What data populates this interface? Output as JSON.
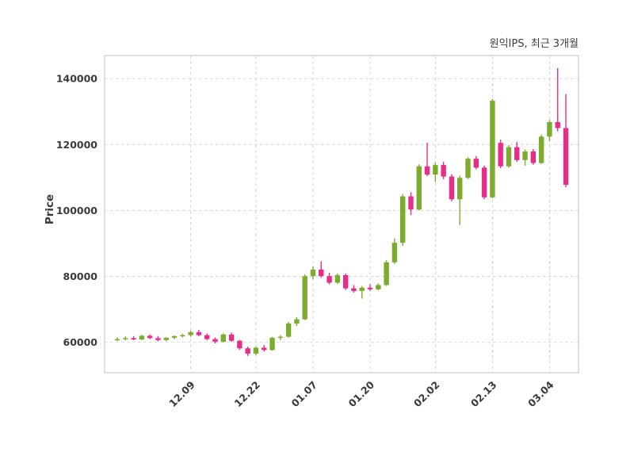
{
  "chart": {
    "title": "원익IPS, 최근 3개월",
    "ylabel": "Price"
  },
  "chart_data": {
    "type": "candlestick",
    "title": "원익IPS, 최근 3개월",
    "ylabel": "Price",
    "xlabel": "",
    "grid": "dashed",
    "legend": "none",
    "up_color": "#7cab2e",
    "down_color": "#e72d87",
    "axis_text_color": "#3a3a3a",
    "grid_color": "#d3d3d3",
    "border_color": "#cccccc",
    "y_ticks": [
      60000,
      80000,
      100000,
      120000,
      140000
    ],
    "y_tick_labels": [
      "60000",
      "80000",
      "100000",
      "120000",
      "140000"
    ],
    "ylim": [
      50800,
      147000
    ],
    "x_tick_labels": [
      "12.09",
      "12.22",
      "01.07",
      "01.20",
      "02.02",
      "02.13",
      "03.04"
    ],
    "x_tick_indices": [
      9,
      17,
      24,
      31,
      39,
      46,
      53
    ],
    "ohlc_order": [
      "open",
      "high",
      "low",
      "close"
    ],
    "candles": [
      [
        60800,
        61500,
        60400,
        61000
      ],
      [
        61000,
        61800,
        60600,
        61300
      ],
      [
        61300,
        61900,
        60700,
        60900
      ],
      [
        60900,
        62300,
        60700,
        62000
      ],
      [
        62000,
        62400,
        61000,
        61300
      ],
      [
        61300,
        61900,
        60300,
        60700
      ],
      [
        60700,
        61600,
        60400,
        61400
      ],
      [
        61400,
        62100,
        61000,
        61900
      ],
      [
        61900,
        62600,
        61500,
        62200
      ],
      [
        62200,
        63600,
        61700,
        63100
      ],
      [
        63100,
        63800,
        61900,
        62200
      ],
      [
        62200,
        62700,
        60700,
        61000
      ],
      [
        61000,
        61500,
        59700,
        60200
      ],
      [
        60200,
        62700,
        60000,
        62400
      ],
      [
        62400,
        63000,
        60200,
        60500
      ],
      [
        60500,
        60700,
        57700,
        58200
      ],
      [
        58200,
        58700,
        55900,
        56600
      ],
      [
        56600,
        58700,
        56100,
        58400
      ],
      [
        58400,
        59200,
        57200,
        57700
      ],
      [
        57700,
        61700,
        57500,
        61400
      ],
      [
        61400,
        62200,
        60700,
        61700
      ],
      [
        61700,
        66200,
        61500,
        65700
      ],
      [
        65700,
        67700,
        65000,
        67000
      ],
      [
        67000,
        80600,
        66800,
        80100
      ],
      [
        80100,
        83100,
        79100,
        82100
      ],
      [
        82100,
        84600,
        79600,
        80100
      ],
      [
        80100,
        81100,
        77600,
        78100
      ],
      [
        78100,
        80900,
        77700,
        80400
      ],
      [
        80400,
        80900,
        75900,
        76400
      ],
      [
        76400,
        77400,
        75100,
        75600
      ],
      [
        75600,
        77100,
        73300,
        76600
      ],
      [
        76600,
        77600,
        75600,
        76100
      ],
      [
        76100,
        77900,
        75800,
        77400
      ],
      [
        77400,
        85000,
        77100,
        84300
      ],
      [
        84300,
        91500,
        83800,
        90200
      ],
      [
        90200,
        105000,
        89300,
        104300
      ],
      [
        104300,
        105500,
        98600,
        100300
      ],
      [
        100300,
        114000,
        100000,
        113400
      ],
      [
        113400,
        120600,
        110400,
        110900
      ],
      [
        110900,
        114500,
        108600,
        113800
      ],
      [
        113800,
        114800,
        109500,
        110300
      ],
      [
        110300,
        111000,
        102800,
        103400
      ],
      [
        103400,
        110600,
        95600,
        109900
      ],
      [
        109900,
        116200,
        109500,
        115700
      ],
      [
        115700,
        116500,
        112500,
        113000
      ],
      [
        113000,
        113600,
        103400,
        104000
      ],
      [
        104000,
        133800,
        103700,
        133300
      ],
      [
        120500,
        121500,
        112800,
        113400
      ],
      [
        113400,
        119800,
        113000,
        119200
      ],
      [
        119200,
        120800,
        114700,
        115300
      ],
      [
        115300,
        118500,
        113600,
        117900
      ],
      [
        117900,
        118600,
        113900,
        114400
      ],
      [
        114400,
        123000,
        114100,
        122400
      ],
      [
        122400,
        127500,
        121000,
        126800
      ],
      [
        126800,
        143200,
        124000,
        125000
      ],
      [
        125000,
        135300,
        107000,
        107800
      ]
    ]
  }
}
